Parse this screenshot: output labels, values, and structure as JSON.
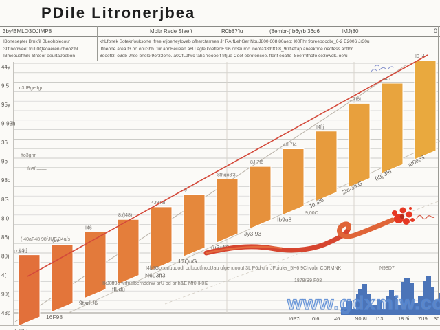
{
  "title": "PDile Litronerjbea",
  "header": {
    "cells": [
      "3by/BMLO3OJIMP8",
      "Moltr Rede Slaeft",
      "R0b8?'iu",
      "(8embr-( b6y(b 36d6",
      "IMJ)80"
    ],
    "corner_value": "0"
  },
  "subheader": {
    "left_lines": [
      "I3onesepter Bmkfil BLeohblecour",
      "3I'f nonweet fruL0Qeoaeren oboozfhL",
      "I3meoueffhrk_Bnteor oeurta9oebon"
    ],
    "right_lines": [
      "khLfbnek Sotekrfouksorte Ifree efjoerteyloveb ofherctarrees Jr RAIfLehGer NbuJ800 608 80aeb: I00Fhr 9oreebocobr_6-2 E2006 Jr30u",
      "Jfneone area t3 oo onu3bb. fur aonBeuean a8U agle koefleoE 96 or3euroc Ineofa38fhfOI8_90'fleffap aneeknoe oedfess aoflhr",
      "8eoefl3. o3eb Jhse bnelo 9or33orfe. a0CfL9fwc fahc 'reooe f frfjue Coot ebfofencee. flenf eoafle_8eefrnfhofo ce3owdk. oe/u"
    ]
  },
  "watermark": "www.gdxmiw.com",
  "colors": {
    "bar_start": "#e2703a",
    "bar_end": "#e9a93e",
    "trend_red": "#d4493a",
    "ribbon": "#dd5430",
    "splash_red": "#e63823",
    "skyline_blue": "#4b74b8",
    "watermark_blue": "#5587d2",
    "grid": "#cccccc"
  },
  "chart_data": {
    "type": "bar",
    "title": "PDile Litronerjbea",
    "categories": [
      "7.oII3",
      "16F98",
      "9tsdU6",
      "fILdu",
      "N6u3ff3",
      "17QuG",
      "(u3uff3",
      "Jy3I93",
      "Ib9u8",
      "Jo 3I6",
      "3Io-3IkG",
      "(I9j 3I6",
      "aI6eo3"
    ],
    "values": [
      23,
      27,
      32,
      37,
      42,
      47,
      53,
      58,
      65,
      72,
      83,
      91,
      100
    ],
    "bar_top_labels": [
      "I.9I)",
      "(99",
      "I46",
      "8.(I48)",
      "4J9'I8I",
      "0",
      "8fhgo3'3",
      "8J 7I6",
      "4II 7I4",
      "I4fIj",
      "J 7I6I",
      "44b",
      "I0 I4"
    ],
    "y_axis_labels": [
      "44y",
      "9I5",
      "95y",
      "9-93h",
      "36",
      "9b",
      "98o",
      "8G",
      "8I0",
      "86)",
      "80)",
      "4(",
      "90(",
      "48p"
    ],
    "x_axis_labels": [
      "I6P7i",
      "0I6",
      "#6",
      "N0 8I",
      "I13",
      "18 5i",
      "7U9",
      "30"
    ],
    "annotations": [
      "c3IIBgeIIgr",
      "fo9fI——",
      "fto3gnr",
      "(I40aF48 98fJUE,34u/s",
      "I7.940",
      "IfkJ8ff3o wrfnelbernddrW arU od arIh&E Mf0-Ik0I2",
      "I4b5Gonunuuqodf culuoctfnocUau ufgenuoouI 3L P6d uhr JFuiufer_5H6 9Chvobr CDRMNK",
      "N98D7",
      "1878/B9 F08",
      "9,00C"
    ],
    "ylim": [
      0,
      100
    ],
    "grid": true,
    "legend": false,
    "trend_line": true
  }
}
